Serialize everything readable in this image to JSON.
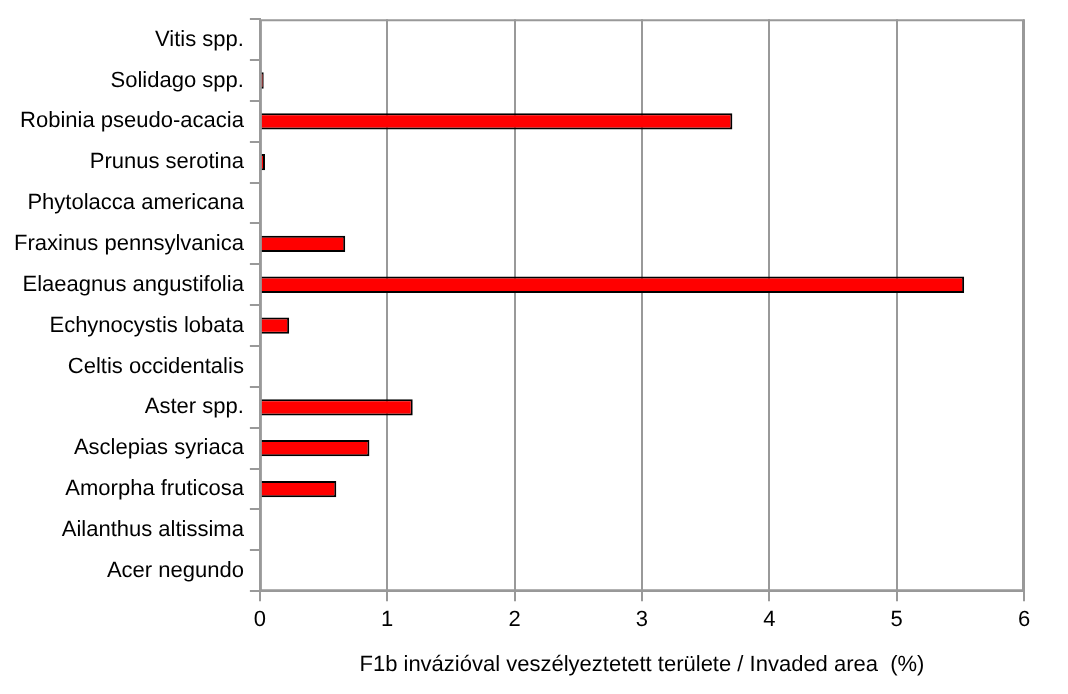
{
  "chart_data": {
    "type": "bar",
    "orientation": "horizontal",
    "xlabel": "F1b invázióval veszélyeztetett területe / Invaded area  (%)",
    "categories": [
      "Vitis spp.",
      "Solidago spp.",
      "Robinia pseudo-acacia",
      "Prunus serotina",
      "Phytolacca americana",
      "Fraxinus pennsylvanica",
      "Elaeagnus angustifolia",
      "Echynocystis lobata",
      "Celtis occidentalis",
      "Aster spp.",
      "Asclepias syriaca",
      "Amorpha fruticosa",
      "Ailanthus altissima",
      "Acer negundo"
    ],
    "values": [
      0,
      0.03,
      3.71,
      0.04,
      0,
      0.67,
      5.53,
      0.23,
      0,
      1.2,
      0.86,
      0.6,
      0,
      0
    ],
    "color": "#ff0000",
    "xlim": [
      0,
      6
    ],
    "xticks": [
      0,
      1,
      2,
      3,
      4,
      5,
      6
    ],
    "grid": "x",
    "legend": false
  }
}
